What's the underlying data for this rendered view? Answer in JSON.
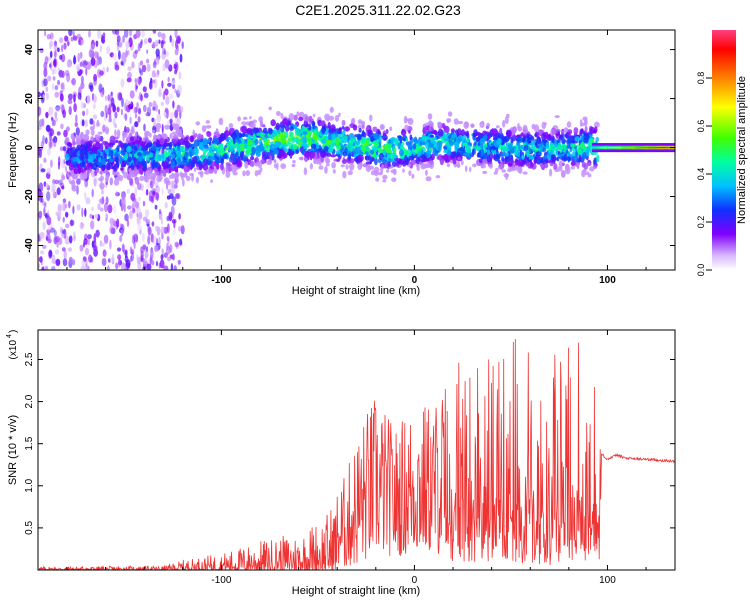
{
  "title": "C2E1.2025.311.22.02.G23",
  "colors": {
    "snr_line": "#ee3333",
    "axis": "#000000"
  },
  "chart_data": [
    {
      "type": "heatmap",
      "name": "spectrogram",
      "xlabel": "Height of straight line (km)",
      "ylabel": "Frequency (Hz)",
      "xlim": [
        -195,
        135
      ],
      "ylim": [
        -50,
        48
      ],
      "x_ticks": [
        -100,
        0,
        100
      ],
      "x_tick_labels": [
        "-100",
        "0",
        "100"
      ],
      "y_ticks": [
        -40,
        -20,
        0,
        20,
        40
      ],
      "y_tick_labels": [
        "-40",
        "-20",
        "0",
        "20",
        "40"
      ],
      "ridge": {
        "x": [
          -175,
          -150,
          -125,
          -100,
          -80,
          -60,
          -45,
          -30,
          -15,
          0,
          15,
          30,
          45,
          60,
          75,
          90,
          95,
          110,
          135
        ],
        "center_hz": [
          -4,
          -3,
          -3,
          -1,
          2,
          4,
          3,
          1,
          -1,
          0,
          2,
          1,
          0,
          -1,
          0,
          0,
          0,
          0,
          0
        ],
        "peak_amplitude": [
          0.3,
          0.35,
          0.4,
          0.45,
          0.5,
          0.55,
          0.5,
          0.5,
          0.5,
          0.45,
          0.45,
          0.4,
          0.4,
          0.4,
          0.4,
          0.45,
          0.6,
          0.75,
          0.98
        ]
      },
      "colorbar": {
        "label": "Normalized spectral amplitude",
        "range": [
          0.0,
          1.0
        ],
        "ticks": [
          0.0,
          0.2,
          0.4,
          0.6,
          0.8
        ],
        "tick_labels": [
          "0.0",
          "0.2",
          "0.4",
          "0.6",
          "0.8"
        ]
      }
    },
    {
      "type": "line",
      "name": "snr",
      "xlabel": "Height of straight line (km)",
      "ylabel": "SNR (10 * v/v)",
      "scale_label": "(x10",
      "scale_exp": "4",
      "xlim": [
        -195,
        135
      ],
      "ylim": [
        0,
        2.85
      ],
      "x_ticks": [
        -100,
        0,
        100
      ],
      "x_tick_labels": [
        "-100",
        "0",
        "100"
      ],
      "y_ticks": [
        0.5,
        1.0,
        1.5,
        2.0,
        2.5
      ],
      "y_tick_labels": [
        "0.5",
        "1.0",
        "1.5",
        "2.0",
        "2.5"
      ],
      "envelope": {
        "x": [
          -195,
          -130,
          -120,
          -100,
          -80,
          -60,
          -45,
          -35,
          -30,
          -25,
          -20,
          -10,
          0,
          10,
          20,
          30,
          40,
          50,
          60,
          70,
          80,
          90,
          96,
          97,
          100,
          105,
          110,
          120,
          135
        ],
        "low": [
          0,
          0,
          0,
          0,
          0,
          0,
          0,
          0.02,
          0.05,
          0.1,
          0.2,
          0.15,
          0.2,
          0.2,
          0.1,
          0.1,
          0.05,
          0.1,
          0.05,
          0.05,
          0.1,
          0.05,
          0.1,
          1.3,
          1.28,
          1.28,
          1.3,
          1.3,
          1.28
        ],
        "high": [
          0.04,
          0.05,
          0.12,
          0.2,
          0.35,
          0.45,
          0.7,
          1.2,
          1.6,
          1.9,
          2.1,
          1.7,
          2.0,
          2.0,
          2.5,
          2.6,
          2.7,
          2.8,
          2.75,
          2.7,
          2.8,
          2.75,
          2.7,
          1.45,
          1.35,
          1.45,
          1.35,
          1.33,
          1.3
        ]
      }
    }
  ]
}
